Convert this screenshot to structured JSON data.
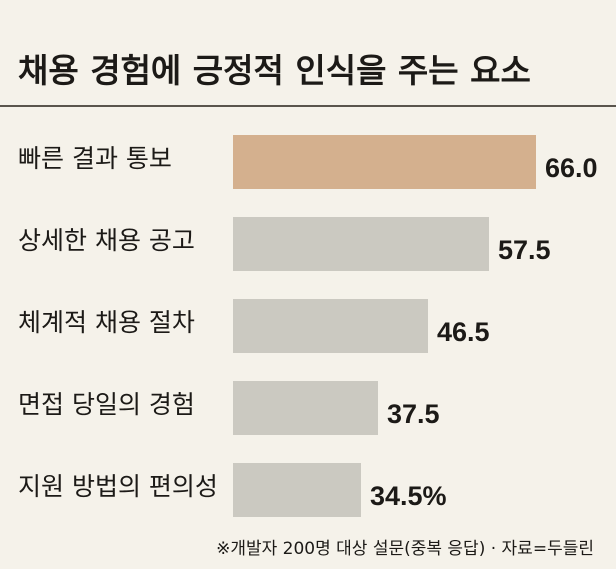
{
  "title": "채용 경험에 긍정적 인식을 주는 요소",
  "footnote": "※개발자 200명 대상 설문(중복 응답) · 자료=두들린",
  "unit_suffix": "%",
  "colors": {
    "background": "#f5f2ea",
    "highlight_bar": "#d4b08e",
    "default_bar": "#cbc9c1"
  },
  "chart_data": {
    "type": "bar",
    "orientation": "horizontal",
    "title": "채용 경험에 긍정적 인식을 주는 요소",
    "categories": [
      "빠른 결과 통보",
      "상세한 채용 공고",
      "체계적 채용 절차",
      "면접 당일의 경험",
      "지원 방법의 편의성"
    ],
    "values": [
      66.0,
      57.5,
      46.5,
      37.5,
      34.5
    ],
    "value_labels": [
      "66.0",
      "57.5",
      "46.5",
      "37.5",
      "34.5%"
    ],
    "highlight_index": 0,
    "xlabel": "",
    "ylabel": "",
    "grid": false,
    "legend": "none"
  }
}
